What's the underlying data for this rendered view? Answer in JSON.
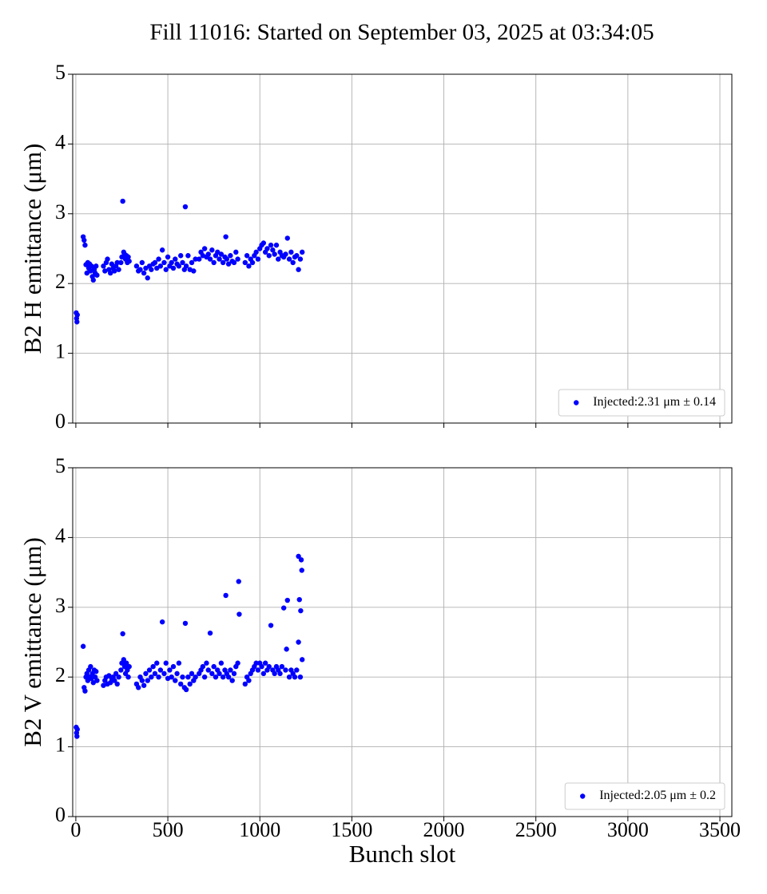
{
  "title": "Fill 11016: Started on September 03, 2025 at 03:34:05",
  "chart_data": [
    {
      "type": "scatter",
      "ylabel": "B2 H emittance (μm)",
      "legend": "lower right",
      "grid": true,
      "show_xticklabels": false,
      "xlim": [
        -17,
        3565
      ],
      "xticks": [
        0,
        500,
        1000,
        1500,
        2000,
        2500,
        3000,
        3500
      ],
      "ylim": [
        0,
        5
      ],
      "yticks": [
        0,
        1,
        2,
        3,
        4,
        5
      ],
      "x": [
        2,
        4,
        6,
        8,
        40,
        45,
        50,
        55,
        60,
        65,
        70,
        75,
        80,
        85,
        90,
        95,
        100,
        105,
        110,
        115,
        150,
        158,
        165,
        172,
        180,
        188,
        195,
        203,
        210,
        218,
        225,
        233,
        245,
        250,
        255,
        260,
        265,
        270,
        275,
        280,
        285,
        290,
        330,
        340,
        350,
        360,
        370,
        380,
        390,
        400,
        410,
        420,
        430,
        440,
        450,
        460,
        470,
        480,
        490,
        500,
        510,
        520,
        530,
        540,
        550,
        560,
        570,
        580,
        590,
        595,
        600,
        610,
        620,
        630,
        640,
        650,
        670,
        680,
        690,
        700,
        710,
        720,
        730,
        740,
        750,
        760,
        770,
        780,
        790,
        800,
        810,
        815,
        820,
        830,
        840,
        850,
        860,
        870,
        880,
        920,
        930,
        940,
        950,
        960,
        970,
        980,
        990,
        1000,
        1010,
        1020,
        1030,
        1040,
        1050,
        1060,
        1070,
        1080,
        1090,
        1100,
        1110,
        1120,
        1130,
        1140,
        1150,
        1160,
        1170,
        1180,
        1190,
        1200,
        1210,
        1220,
        1230
      ],
      "series": [
        {
          "name": "Injected:2.31 μm ± 0.14",
          "color": "#0000ff",
          "values": [
            1.58,
            1.5,
            1.45,
            1.55,
            2.67,
            2.62,
            2.55,
            2.27,
            2.15,
            2.3,
            2.22,
            2.28,
            2.18,
            2.25,
            2.1,
            2.05,
            2.2,
            2.15,
            2.25,
            2.12,
            2.25,
            2.18,
            2.3,
            2.35,
            2.2,
            2.15,
            2.28,
            2.22,
            2.18,
            2.25,
            2.3,
            2.2,
            2.3,
            2.38,
            3.18,
            2.45,
            2.42,
            2.35,
            2.4,
            2.3,
            2.38,
            2.32,
            2.25,
            2.18,
            2.2,
            2.3,
            2.15,
            2.22,
            2.08,
            2.25,
            2.2,
            2.28,
            2.3,
            2.22,
            2.35,
            2.25,
            2.48,
            2.3,
            2.2,
            2.38,
            2.25,
            2.3,
            2.22,
            2.35,
            2.28,
            2.25,
            2.4,
            2.3,
            2.2,
            3.1,
            2.25,
            2.4,
            2.2,
            2.3,
            2.18,
            2.35,
            2.35,
            2.45,
            2.4,
            2.5,
            2.38,
            2.42,
            2.35,
            2.48,
            2.3,
            2.4,
            2.45,
            2.35,
            2.42,
            2.3,
            2.38,
            2.67,
            2.35,
            2.28,
            2.4,
            2.32,
            2.3,
            2.45,
            2.35,
            2.3,
            2.4,
            2.25,
            2.35,
            2.3,
            2.4,
            2.45,
            2.35,
            2.5,
            2.55,
            2.58,
            2.45,
            2.5,
            2.4,
            2.55,
            2.48,
            2.42,
            2.55,
            2.35,
            2.45,
            2.4,
            2.38,
            2.42,
            2.65,
            2.35,
            2.45,
            2.3,
            2.38,
            2.4,
            2.2,
            2.35,
            2.45
          ]
        }
      ]
    },
    {
      "type": "scatter",
      "ylabel": "B2 V emittance (μm)",
      "xlabel": "Bunch slot",
      "legend": "lower right",
      "grid": true,
      "show_xticklabels": true,
      "xlim": [
        -17,
        3565
      ],
      "xticks": [
        0,
        500,
        1000,
        1500,
        2000,
        2500,
        3000,
        3500
      ],
      "ylim": [
        0,
        5
      ],
      "yticks": [
        0,
        1,
        2,
        3,
        4,
        5
      ],
      "x": [
        2,
        4,
        6,
        8,
        40,
        45,
        50,
        55,
        60,
        65,
        70,
        75,
        80,
        85,
        90,
        95,
        100,
        105,
        110,
        115,
        150,
        158,
        165,
        172,
        180,
        188,
        195,
        203,
        210,
        218,
        225,
        233,
        245,
        250,
        255,
        260,
        265,
        270,
        275,
        280,
        285,
        290,
        330,
        340,
        350,
        360,
        370,
        380,
        390,
        400,
        410,
        420,
        430,
        440,
        450,
        460,
        470,
        480,
        490,
        500,
        510,
        520,
        530,
        540,
        550,
        560,
        570,
        580,
        590,
        595,
        600,
        610,
        620,
        630,
        640,
        650,
        670,
        680,
        690,
        700,
        710,
        720,
        730,
        740,
        750,
        760,
        770,
        780,
        790,
        800,
        810,
        815,
        820,
        830,
        840,
        850,
        860,
        870,
        880,
        920,
        930,
        940,
        950,
        960,
        970,
        980,
        990,
        1000,
        1010,
        1020,
        1030,
        1040,
        1050,
        1060,
        1070,
        1080,
        1090,
        1100,
        1110,
        1120,
        1130,
        1140,
        1150,
        1160,
        1170,
        1180,
        1190,
        1200,
        1210,
        1220,
        1230,
        885,
        888,
        1145,
        1215,
        1225,
        1228,
        1210,
        1222
      ],
      "series": [
        {
          "name": "Injected:2.05 μm ± 0.2",
          "color": "#0000ff",
          "values": [
            1.28,
            1.2,
            1.15,
            1.25,
            2.44,
            1.85,
            1.8,
            2.0,
            2.05,
            1.95,
            2.1,
            2.0,
            2.15,
            1.98,
            2.05,
            1.92,
            2.1,
            2.0,
            2.08,
            1.95,
            1.88,
            1.95,
            2.0,
            1.9,
            2.02,
            1.92,
            1.98,
            2.0,
            1.95,
            2.05,
            1.9,
            2.0,
            2.1,
            2.2,
            2.62,
            2.25,
            2.15,
            2.05,
            2.2,
            2.1,
            2.0,
            2.15,
            1.9,
            1.85,
            2.0,
            1.95,
            1.88,
            2.05,
            1.95,
            2.1,
            2.0,
            2.15,
            2.05,
            2.2,
            2.0,
            2.1,
            2.79,
            2.05,
            2.2,
            1.98,
            2.1,
            2.0,
            2.15,
            1.95,
            2.05,
            2.2,
            1.9,
            2.0,
            1.85,
            2.77,
            1.82,
            2.0,
            1.9,
            2.05,
            1.95,
            2.0,
            2.05,
            2.1,
            2.15,
            2.0,
            2.2,
            2.1,
            2.63,
            2.05,
            2.15,
            2.0,
            2.1,
            2.05,
            2.2,
            2.0,
            2.1,
            3.17,
            2.05,
            2.0,
            2.1,
            1.95,
            2.05,
            2.15,
            2.2,
            1.9,
            2.0,
            1.95,
            2.05,
            2.1,
            2.15,
            2.2,
            2.1,
            2.2,
            2.15,
            2.05,
            2.2,
            2.1,
            2.15,
            2.74,
            2.1,
            2.05,
            2.15,
            2.1,
            2.05,
            2.15,
            2.99,
            2.1,
            3.1,
            2.0,
            2.1,
            2.05,
            2.0,
            2.1,
            3.73,
            2.0,
            2.25,
            3.37,
            2.9,
            2.4,
            3.11,
            3.68,
            3.53,
            2.5,
            2.95
          ]
        }
      ]
    }
  ]
}
